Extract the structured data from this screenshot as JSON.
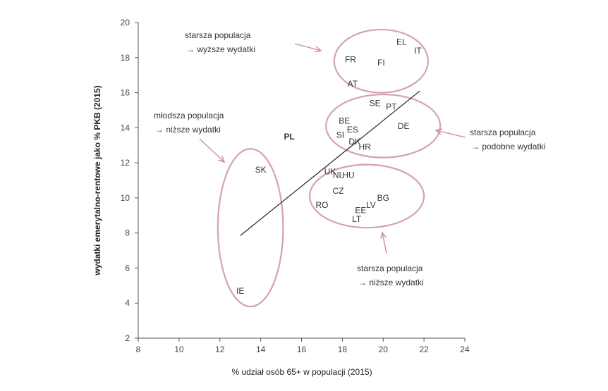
{
  "chart_data": {
    "type": "scatter",
    "title": "",
    "xlabel": "% udział osób 65+ w populacji (2015)",
    "ylabel": "wydatki emerytalno-rentowe jako % PKB (2015)",
    "xlim": [
      8,
      24
    ],
    "ylim": [
      2,
      20
    ],
    "xticks": [
      8,
      10,
      12,
      14,
      16,
      18,
      20,
      22,
      24
    ],
    "yticks": [
      2,
      4,
      6,
      8,
      10,
      12,
      14,
      16,
      18,
      20
    ],
    "grid": false,
    "points": [
      {
        "label": "EL",
        "x": 20.9,
        "y": 18.9
      },
      {
        "label": "IT",
        "x": 21.7,
        "y": 18.4
      },
      {
        "label": "FR",
        "x": 18.4,
        "y": 17.9
      },
      {
        "label": "FI",
        "x": 19.9,
        "y": 17.7
      },
      {
        "label": "AT",
        "x": 18.5,
        "y": 16.5
      },
      {
        "label": "SE",
        "x": 19.6,
        "y": 15.4
      },
      {
        "label": "PT",
        "x": 20.4,
        "y": 15.2
      },
      {
        "label": "BE",
        "x": 18.1,
        "y": 14.4
      },
      {
        "label": "ES",
        "x": 18.5,
        "y": 13.9
      },
      {
        "label": "DE",
        "x": 21.0,
        "y": 14.1
      },
      {
        "label": "SI",
        "x": 17.9,
        "y": 13.6
      },
      {
        "label": "DK",
        "x": 18.6,
        "y": 13.2
      },
      {
        "label": "HR",
        "x": 19.1,
        "y": 12.9
      },
      {
        "label": "PL",
        "x": 15.4,
        "y": 13.5,
        "bold": true
      },
      {
        "label": "SK",
        "x": 14.0,
        "y": 11.6
      },
      {
        "label": "UK",
        "x": 17.4,
        "y": 11.5
      },
      {
        "label": "NL",
        "x": 17.8,
        "y": 11.3
      },
      {
        "label": "HU",
        "x": 18.3,
        "y": 11.3
      },
      {
        "label": "CZ",
        "x": 17.8,
        "y": 10.4
      },
      {
        "label": "BG",
        "x": 20.0,
        "y": 10.0
      },
      {
        "label": "RO",
        "x": 17.0,
        "y": 9.6
      },
      {
        "label": "LV",
        "x": 19.4,
        "y": 9.6
      },
      {
        "label": "EE",
        "x": 18.9,
        "y": 9.3
      },
      {
        "label": "LT",
        "x": 18.7,
        "y": 8.8
      },
      {
        "label": "IE",
        "x": 13.0,
        "y": 4.7
      }
    ],
    "trendline": {
      "x": [
        13.0,
        21.8
      ],
      "y": [
        7.85,
        16.1
      ]
    },
    "groups": [
      {
        "name": "top",
        "cx": 19.9,
        "cy": 17.8,
        "rx": 2.3,
        "ry": 1.8
      },
      {
        "name": "middle",
        "cx": 20.0,
        "cy": 14.1,
        "rx": 2.8,
        "ry": 1.8
      },
      {
        "name": "bottom",
        "cx": 19.2,
        "cy": 10.1,
        "rx": 2.8,
        "ry": 1.8
      },
      {
        "name": "left",
        "cx": 13.5,
        "cy": 8.3,
        "rx": 1.6,
        "ry": 4.5
      }
    ],
    "annotations": [
      {
        "lines": [
          "starsza populacja",
          "→ wyższe wydatki"
        ]
      },
      {
        "lines": [
          "młodsza populacja",
          "→ niższe wydatki"
        ]
      },
      {
        "lines": [
          "starsza populacja",
          "→ podobne wydatki"
        ]
      },
      {
        "lines": [
          "starsza populacja",
          "→ niższe wydatki"
        ]
      }
    ],
    "colors": {
      "ellipse": "#d4a3ae",
      "arrow": "#c98f9c",
      "trend": "#222222",
      "axis": "#555555"
    }
  }
}
